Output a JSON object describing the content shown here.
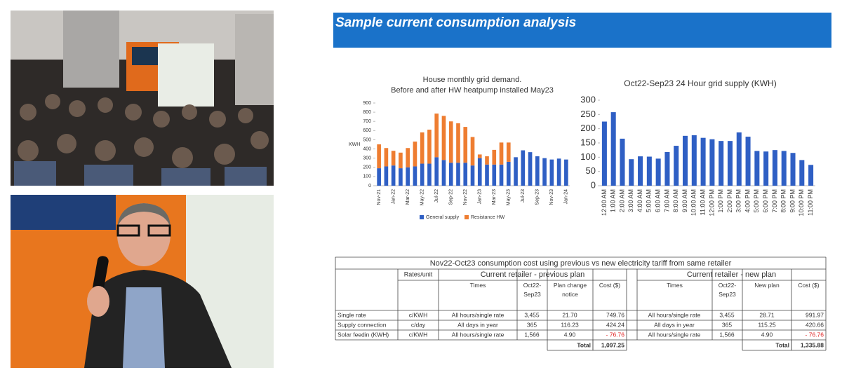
{
  "header": {
    "title": "Sample current consumption analysis"
  },
  "chart_data": [
    {
      "type": "stacked-bar",
      "title": "House monthly grid demand.",
      "subtitle": "Before and after HW heatpump installed May23",
      "y_label": "KWH",
      "categories": [
        "Nov-21",
        null,
        "Jan-22",
        null,
        "Mar-22",
        null,
        "May-22",
        null,
        "Jul-22",
        null,
        "Sep-22",
        null,
        "Nov-22",
        null,
        "Jan-23",
        null,
        "Mar-23",
        null,
        "May-23",
        null,
        "Jul-23",
        null,
        "Sep-23",
        null,
        "Nov-23",
        null,
        "Jan-24"
      ],
      "series": [
        {
          "name": "General supply",
          "color": "#2f5fc4",
          "values": [
            190,
            210,
            220,
            190,
            200,
            210,
            240,
            240,
            310,
            280,
            250,
            250,
            250,
            220,
            300,
            230,
            230,
            230,
            260,
            310,
            385,
            365,
            320,
            300,
            285,
            295,
            285
          ]
        },
        {
          "name": "Resistance HW",
          "color": "#ee7d31",
          "values": [
            260,
            200,
            160,
            170,
            210,
            270,
            340,
            370,
            475,
            480,
            450,
            430,
            390,
            310,
            40,
            90,
            160,
            240,
            210,
            null,
            null,
            null,
            null,
            null,
            null,
            null,
            null
          ]
        }
      ],
      "ylim": [
        0,
        900
      ],
      "yticks": [
        0,
        100,
        200,
        300,
        400,
        500,
        600,
        700,
        800,
        900
      ],
      "grid": false,
      "legend": "bottom"
    },
    {
      "type": "bar",
      "title": "Oct22-Sep23 24 Hour grid supply (KWH)",
      "categories": [
        "12:00 AM",
        "1:00 AM",
        "2:00 AM",
        "3:00 AM",
        "4:00 AM",
        "5:00 AM",
        "6:00 AM",
        "7:00 AM",
        "8:00 AM",
        "9:00 AM",
        "10:00 AM",
        "11:00 AM",
        "12:00 PM",
        "1:00 PM",
        "2:00 PM",
        "3:00 PM",
        "4:00 PM",
        "5:00 PM",
        "6:00 PM",
        "7:00 PM",
        "8:00 PM",
        "9:00 PM",
        "10:00 PM",
        "11:00 PM"
      ],
      "values": [
        225,
        258,
        165,
        93,
        103,
        102,
        95,
        118,
        140,
        175,
        177,
        168,
        163,
        157,
        157,
        187,
        172,
        122,
        120,
        125,
        122,
        115,
        90,
        73
      ],
      "color": "#2f5fc4",
      "ylim": [
        0,
        300
      ],
      "yticks": [
        0,
        50,
        100,
        150,
        200,
        250,
        300
      ],
      "grid": false
    }
  ],
  "table": {
    "title": "Nov22-Oct23 consumption cost using previous vs new electricity tariff from same retailer",
    "unit_header": "Rates/unit",
    "group_headers": [
      "Current retailer - previous plan",
      "Current retailer - new plan"
    ],
    "columns": [
      "Times",
      "Oct22-Sep23",
      "Plan change notice",
      "Cost ($)",
      "Times",
      "Oct22-Sep23",
      "New plan",
      "Cost ($)"
    ],
    "rows": [
      [
        "Single rate",
        "c/KWH",
        "All hours/single rate",
        "3,455",
        "21.70",
        "749.76",
        "All hours/single rate",
        "3,455",
        "28.71",
        "991.97"
      ],
      [
        "Supply connection",
        "c/day",
        "All days in year",
        "365",
        "116.23",
        "424.24",
        "All days in year",
        "365",
        "115.25",
        "420.66"
      ],
      [
        "Solar feedin (KWH)",
        "c/KWH",
        "All hours/single rate",
        "1,566",
        "4.90",
        "- 76.76",
        "All hours/single rate",
        "1,566",
        "4.90",
        "- 76.76"
      ]
    ],
    "totals": [
      [
        "Total",
        "1,097.25"
      ],
      [
        "Total",
        "1,335.88"
      ]
    ]
  }
}
